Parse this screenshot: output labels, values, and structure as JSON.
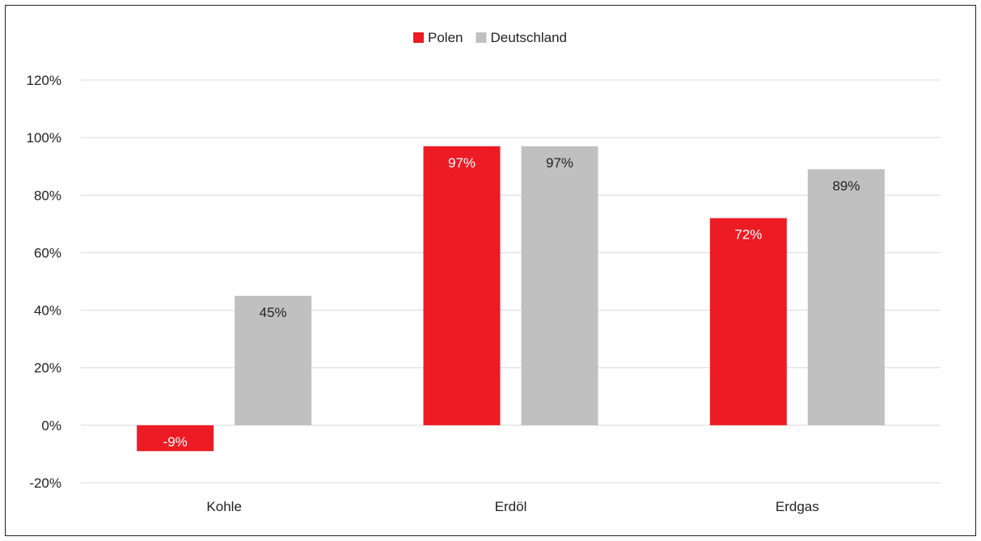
{
  "chart_data": {
    "type": "bar",
    "categories": [
      "Kohle",
      "Erdöl",
      "Erdgas"
    ],
    "series": [
      {
        "name": "Polen",
        "values": [
          -9,
          97,
          72
        ],
        "labels": [
          "-9%",
          "97%",
          "72%"
        ],
        "color": "#ed1c24",
        "label_color": "#ffffff"
      },
      {
        "name": "Deutschland",
        "values": [
          45,
          97,
          89
        ],
        "labels": [
          "45%",
          "97%",
          "89%"
        ],
        "color": "#c0c0c0",
        "label_color": "#222222"
      }
    ],
    "ylim": [
      -20,
      120
    ],
    "yticks": [
      -20,
      0,
      20,
      40,
      60,
      80,
      100,
      120
    ],
    "ytick_labels": [
      "-20%",
      "0%",
      "20%",
      "40%",
      "60%",
      "80%",
      "100%",
      "120%"
    ],
    "grid": true,
    "legend_position": "top-center",
    "gridline_color": "#d9d9d9",
    "text_color": "#222222"
  }
}
